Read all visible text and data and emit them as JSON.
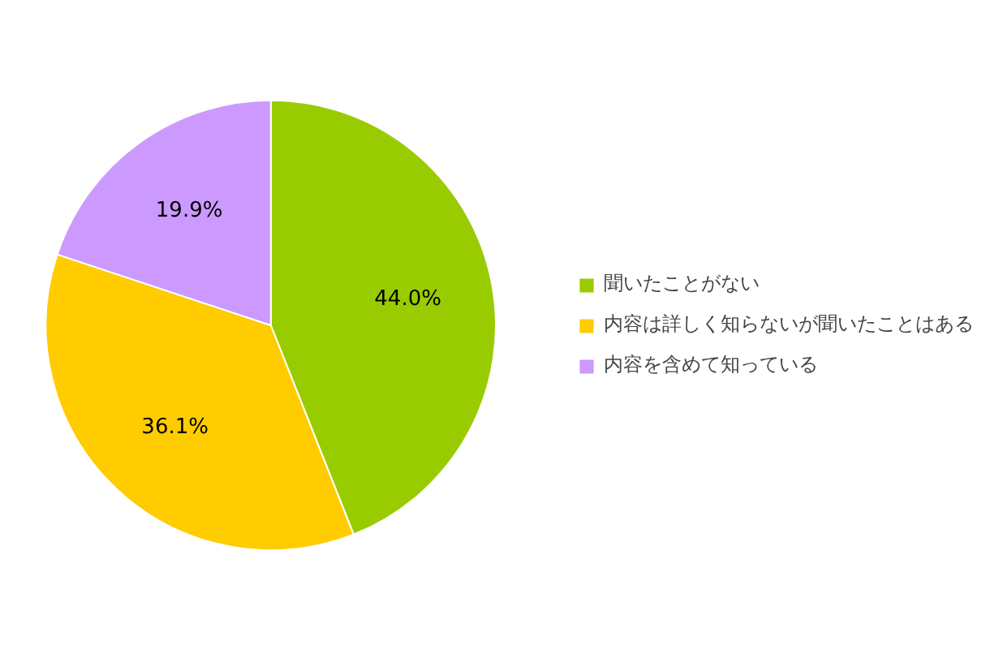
{
  "chart_data": {
    "type": "pie",
    "categories": [
      "聞いたことがない",
      "内容は詳しく知らないが聞いたことはある",
      "内容を含めて知っている"
    ],
    "values": [
      44.0,
      36.1,
      19.9
    ],
    "colors": [
      "#99cc00",
      "#ffcc00",
      "#cc99ff"
    ],
    "value_labels": [
      "44.0%",
      "36.1%",
      "19.9%"
    ],
    "legend": "right"
  }
}
